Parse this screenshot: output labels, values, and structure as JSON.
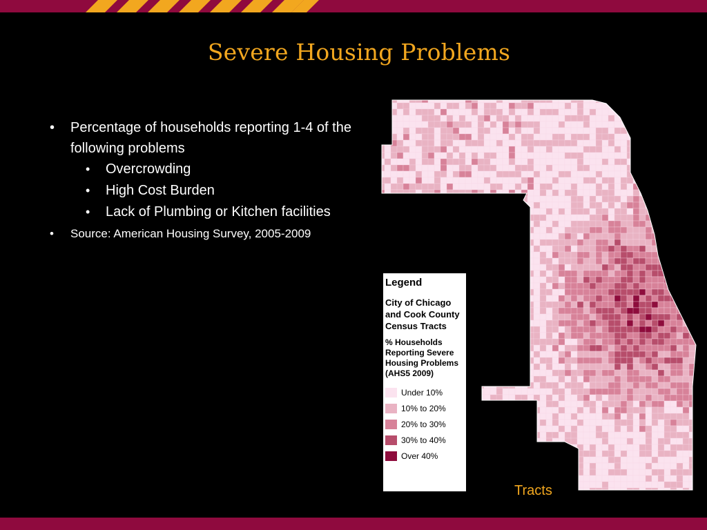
{
  "slide": {
    "title": "Severe Housing Problems",
    "bullets": [
      {
        "text": "Percentage of households reporting 1-4 of the following problems"
      },
      {
        "text": "Overcrowding"
      },
      {
        "text": "High Cost Burden"
      },
      {
        "text": "Lack of Plumbing or Kitchen facilities"
      },
      {
        "text": "Source: American Housing Survey, 2005-2009"
      }
    ],
    "map_caption": "Tracts"
  },
  "legend": {
    "title": "Legend",
    "subtitle": "City of Chicago and Cook County Census Tracts",
    "measure": "% Households Reporting Severe Housing Problems (AHS5 2009)",
    "classes": [
      {
        "label": "Under 10%",
        "color": "#fbe3ef"
      },
      {
        "label": "10% to 20%",
        "color": "#e9b3c3"
      },
      {
        "label": "20% to 30%",
        "color": "#d78299"
      },
      {
        "label": "30% to 40%",
        "color": "#b74d6b"
      },
      {
        "label": "Over 40%",
        "color": "#8e0c3c"
      }
    ]
  },
  "theme": {
    "background": "#000000",
    "band_color": "#8f0a3e",
    "stripe_color": "#f2a71f",
    "title_color": "#f2a71f"
  }
}
